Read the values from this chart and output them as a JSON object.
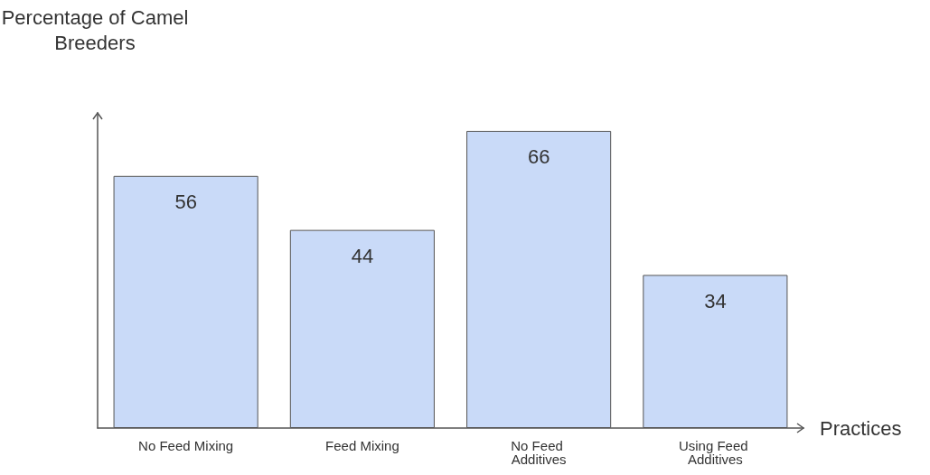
{
  "chart_data": {
    "type": "bar",
    "xlabel": "Practices",
    "ylabel": "Percentage of Camel Breeders",
    "categories": [
      "No Feed Mixing",
      "Feed Mixing",
      "No Feed Additives",
      "Using Feed Additives"
    ],
    "values": [
      56,
      44,
      66,
      34
    ],
    "color": "#c9daf8",
    "data_labels": true,
    "grid": false
  }
}
